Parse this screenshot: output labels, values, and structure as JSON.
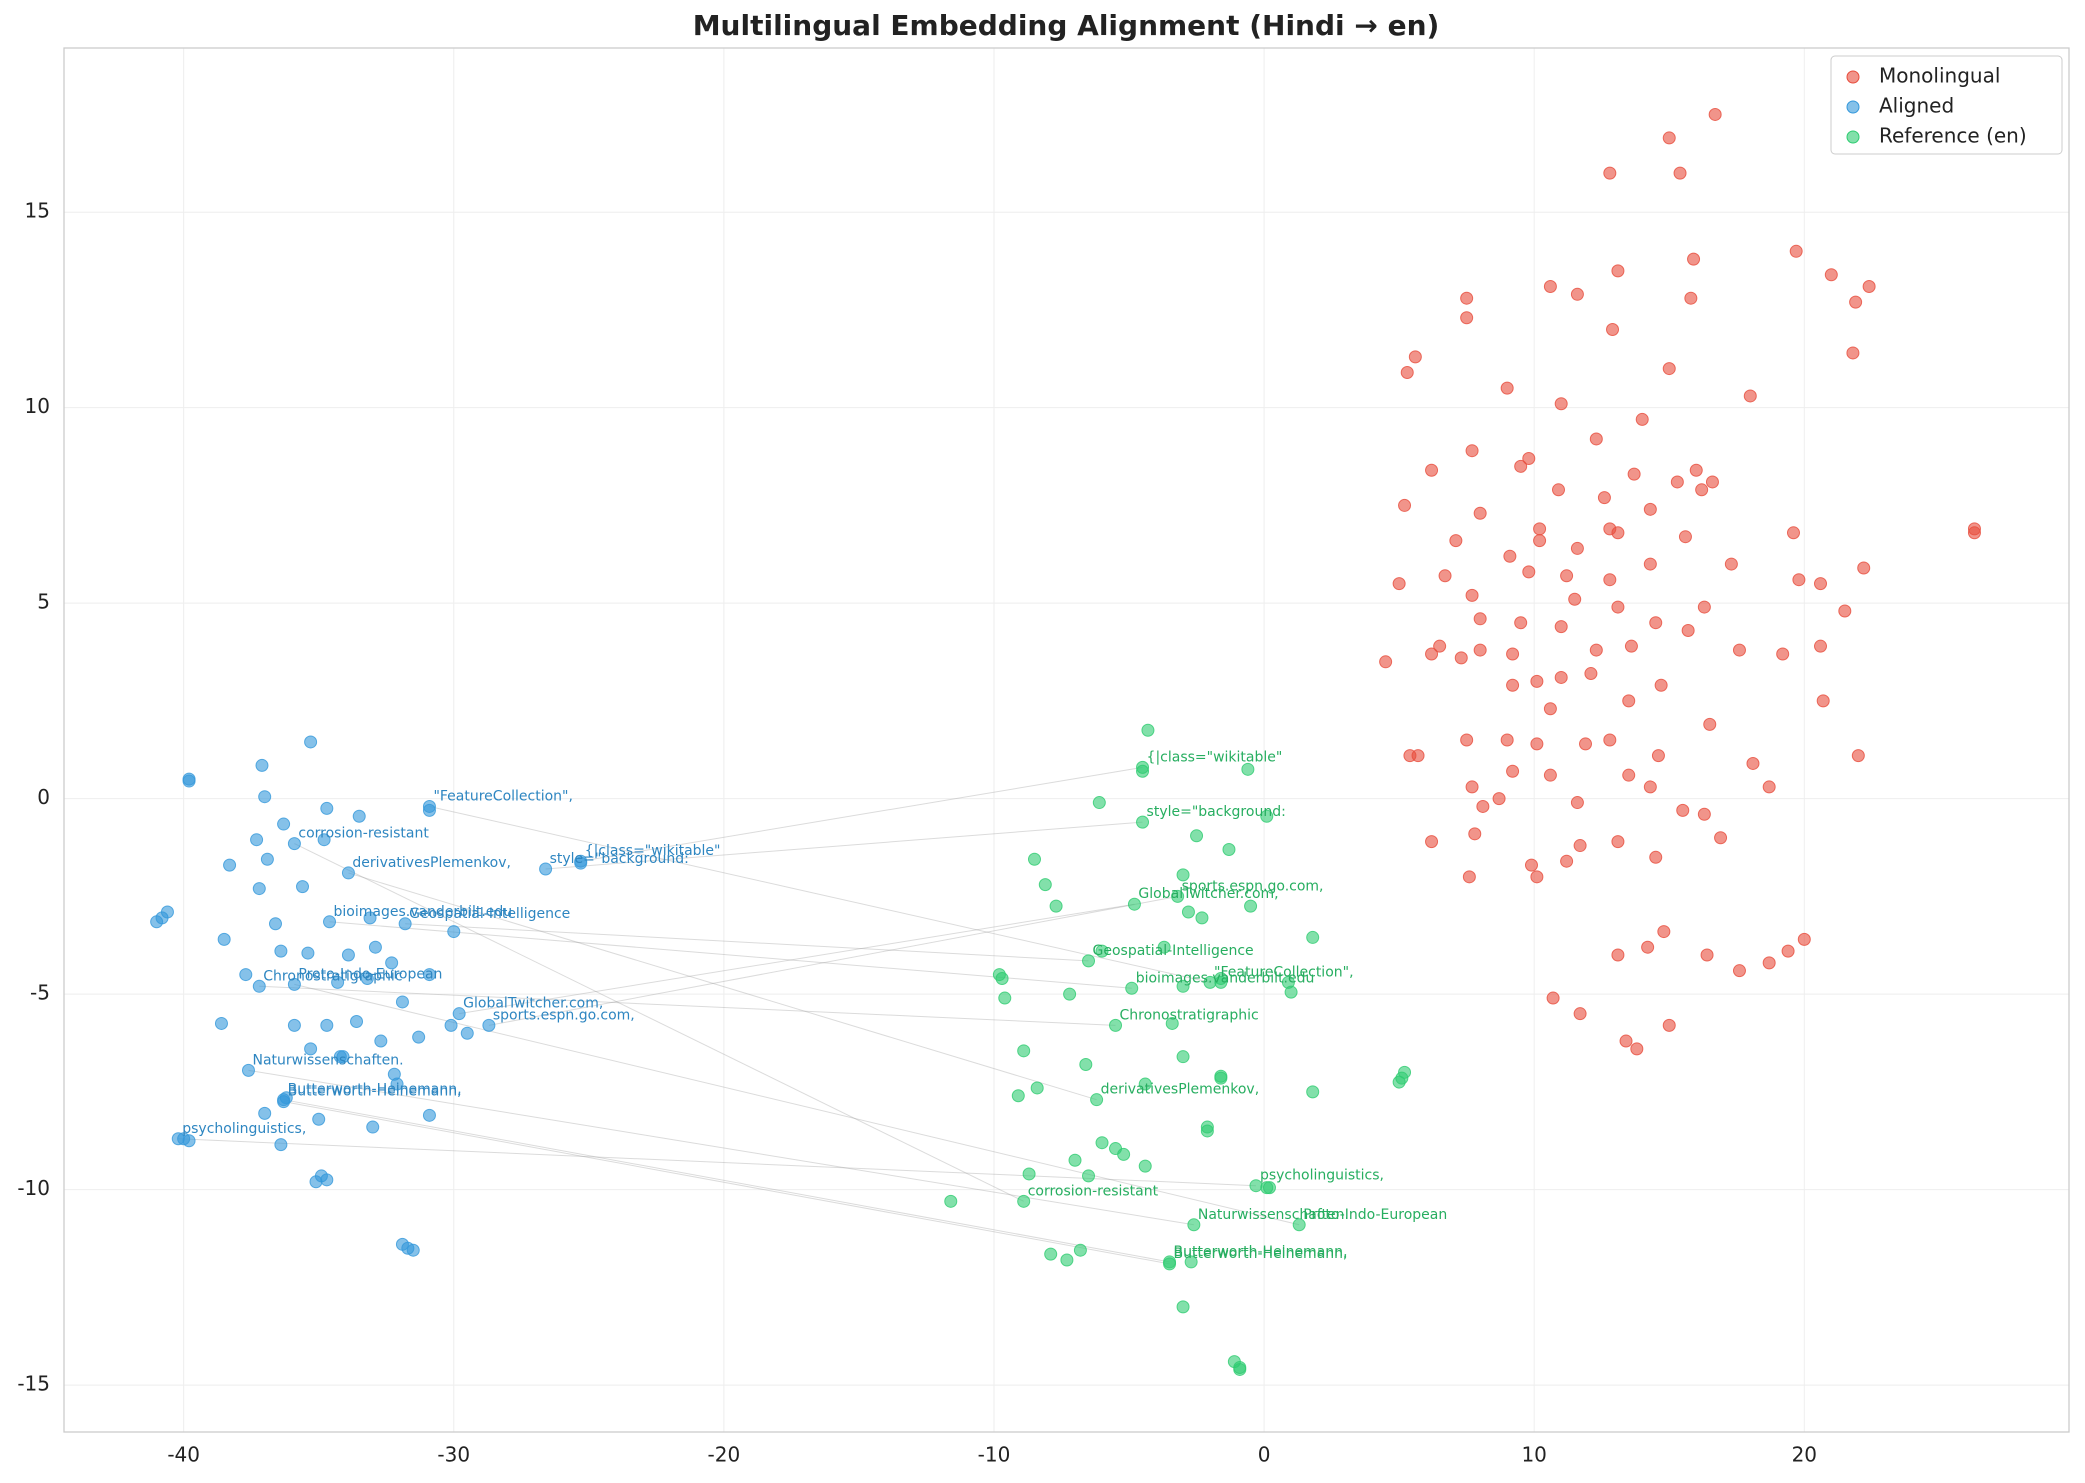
{
  "chart_data": {
    "type": "scatter",
    "title": "Multilingual Embedding Alignment (Hindi → en)",
    "xlim": [
      -44.43,
      29.8
    ],
    "ylim": [
      -16.2,
      19.2
    ],
    "xticks": [
      -40,
      -30,
      -20,
      -10,
      0,
      10,
      20
    ],
    "yticks": [
      -15,
      -10,
      -5,
      0,
      5,
      10,
      15
    ],
    "grid": true,
    "legend": "upper right",
    "series": [
      {
        "name": "Monolingual",
        "color": "#e74c3c",
        "x": [
          16.7,
          15,
          12.8,
          15.4,
          19.7,
          15.9,
          21,
          22.4,
          10.6,
          11.6,
          13.1,
          7.5,
          7.5,
          12.9,
          15.8,
          21.9,
          21.8,
          5.6,
          5.3,
          15,
          18,
          9,
          11,
          14,
          12.3,
          7.7,
          9.8,
          9.5,
          6.2,
          13.7,
          16,
          16.6,
          15.3,
          16.2,
          10.9,
          5.2,
          12.6,
          14.3,
          8,
          26.3,
          26.3,
          10.2,
          12.8,
          13.1,
          15.6,
          19.6,
          10.2,
          7.1,
          11.6,
          9.1,
          17.3,
          14.3,
          22.2,
          6.7,
          9.8,
          11.2,
          12.8,
          19.8,
          20.6,
          5,
          7.7,
          11.5,
          13.1,
          16.3,
          21.5,
          8,
          9.5,
          11,
          14.5,
          15.7,
          4.5,
          6.5,
          6.2,
          7.3,
          8,
          9.2,
          12.3,
          13.6,
          17.6,
          19.2,
          20.6,
          10.1,
          11,
          12.1,
          9.2,
          14.7,
          13.5,
          10.6,
          20.7,
          16.5,
          7.5,
          9,
          10.1,
          11.9,
          12.8,
          14.6,
          5.4,
          5.7,
          22,
          18.1,
          9.2,
          10.6,
          13.5,
          7.7,
          14.3,
          18.7,
          8.7,
          8.1,
          11.6,
          15.5,
          16.3,
          6.2,
          7.8,
          16.9,
          11.7,
          9.9,
          11.2,
          13.1,
          14.5,
          7.6,
          10.1,
          14.8,
          14.2,
          13.1,
          16.4,
          19.4,
          20,
          17.6,
          18.7,
          10.7,
          11.7,
          15,
          13.4,
          13.8
        ],
        "y": [
          17.5,
          16.9,
          16,
          16,
          14,
          13.8,
          13.4,
          13.1,
          13.1,
          12.9,
          13.5,
          12.8,
          12.3,
          12,
          12.8,
          12.7,
          11.4,
          11.3,
          10.9,
          11,
          10.3,
          10.5,
          10.1,
          9.7,
          9.2,
          8.9,
          8.7,
          8.5,
          8.4,
          8.3,
          8.4,
          8.1,
          8.1,
          7.9,
          7.9,
          7.5,
          7.7,
          7.4,
          7.3,
          6.9,
          6.8,
          6.9,
          6.9,
          6.8,
          6.7,
          6.8,
          6.6,
          6.6,
          6.4,
          6.2,
          6,
          6,
          5.9,
          5.7,
          5.8,
          5.7,
          5.6,
          5.6,
          5.5,
          5.5,
          5.2,
          5.1,
          4.9,
          4.9,
          4.8,
          4.6,
          4.5,
          4.4,
          4.5,
          4.3,
          3.5,
          3.9,
          3.7,
          3.6,
          3.8,
          3.7,
          3.8,
          3.9,
          3.8,
          3.7,
          3.9,
          3,
          3.1,
          3.2,
          2.9,
          2.9,
          2.5,
          2.3,
          2.5,
          1.9,
          1.5,
          1.5,
          1.4,
          1.4,
          1.5,
          1.1,
          1.1,
          1.1,
          1.1,
          0.9,
          0.7,
          0.6,
          0.6,
          0.3,
          0.3,
          0.3,
          0,
          -0.2,
          -0.1,
          -0.3,
          -0.4,
          -1.1,
          -0.9,
          -1,
          -1.2,
          -1.7,
          -1.6,
          -1.1,
          -1.5,
          -2,
          -2,
          -3.4,
          -3.8,
          -4,
          -4,
          -3.9,
          -3.6,
          -4.4,
          -4.2,
          -5.1,
          -5.5,
          -5.8,
          -6.2,
          -6.4
        ]
      },
      {
        "name": "Aligned",
        "color": "#3498db",
        "x": [
          -35.3,
          -37.1,
          -39.8,
          -39.8,
          -37,
          -34.7,
          -33.5,
          -36.3,
          -30.9,
          -30.9,
          -37.3,
          -35.9,
          -34.8,
          -38.3,
          -36.9,
          -33.9,
          -25.3,
          -25.3,
          -26.6,
          -37.2,
          -35.6,
          -40.6,
          -41,
          -40.8,
          -36.6,
          -34.6,
          -33.1,
          -31.8,
          -30,
          -38.5,
          -36.4,
          -35.4,
          -33.9,
          -32.9,
          -32.3,
          -37.7,
          -37.2,
          -35.9,
          -34.3,
          -33.2,
          -31.9,
          -30.9,
          -29.8,
          -30.1,
          -28.7,
          -29.5,
          -38.6,
          -35.9,
          -34.7,
          -33.6,
          -32.7,
          -31.3,
          -35.3,
          -34.2,
          -34.1,
          -37.6,
          -32.2,
          -32.1,
          -36.3,
          -36.3,
          -36.2,
          -37,
          -30.9,
          -35,
          -33,
          -40.2,
          -39.8,
          -40,
          -36.4,
          -34.9,
          -35.1,
          -34.7,
          -31.9,
          -31.7,
          -31.5
        ],
        "y": [
          1.45,
          0.85,
          0.5,
          0.45,
          0.05,
          -0.25,
          -0.45,
          -0.65,
          -0.2,
          -0.3,
          -1.05,
          -1.15,
          -1.05,
          -1.7,
          -1.55,
          -1.9,
          -1.6,
          -1.65,
          -1.8,
          -2.3,
          -2.25,
          -2.9,
          -3.15,
          -3.05,
          -3.2,
          -3.15,
          -3.05,
          -3.2,
          -3.4,
          -3.6,
          -3.9,
          -3.95,
          -4,
          -3.8,
          -4.2,
          -4.5,
          -4.8,
          -4.75,
          -4.7,
          -4.6,
          -5.2,
          -4.5,
          -5.5,
          -5.8,
          -5.8,
          -6,
          -5.75,
          -5.8,
          -5.8,
          -5.7,
          -6.2,
          -6.1,
          -6.4,
          -6.6,
          -6.6,
          -6.95,
          -7.05,
          -7.3,
          -7.7,
          -7.75,
          -7.65,
          -8.05,
          -8.1,
          -8.2,
          -8.4,
          -8.7,
          -8.75,
          -8.7,
          -8.85,
          -9.65,
          -9.8,
          -9.75,
          -11.4,
          -11.5,
          -11.55
        ]
      },
      {
        "name": "Reference (en)",
        "color": "#2ecc71",
        "x": [
          -4.3,
          -4.5,
          -4.5,
          -0.6,
          -6.1,
          0.1,
          -4.5,
          -2.5,
          -1.3,
          -8.5,
          -8.1,
          -3,
          -7.7,
          -4.8,
          -3.2,
          -2.8,
          -2.3,
          -0.5,
          1.8,
          -3.7,
          -6,
          -6.5,
          -2,
          -1.6,
          -1.6,
          0.9,
          1,
          -4.9,
          -3,
          -9.8,
          -9.7,
          -9.6,
          -7.2,
          -5.5,
          -3.4,
          -8.9,
          -6.6,
          -3,
          -1.6,
          -1.6,
          5.2,
          5.1,
          5,
          -8.4,
          -9.1,
          -6.2,
          -4.4,
          1.8,
          -2.1,
          -2.1,
          -6,
          -5.5,
          -5.2,
          -7,
          -8.7,
          -6.5,
          -4.4,
          -0.3,
          0.1,
          0.2,
          -11.6,
          -8.9,
          -2.6,
          1.3,
          -7.9,
          -7.3,
          -6.8,
          -3.5,
          -3.5,
          -2.7,
          -3,
          -1.1,
          -0.9,
          -0.9
        ],
        "y": [
          1.75,
          0.8,
          0.7,
          0.75,
          -0.1,
          -0.45,
          -0.6,
          -0.95,
          -1.3,
          -1.55,
          -2.2,
          -1.95,
          -2.75,
          -2.7,
          -2.5,
          -2.9,
          -3.05,
          -2.75,
          -3.55,
          -3.8,
          -3.9,
          -4.15,
          -4.7,
          -4.6,
          -4.7,
          -4.7,
          -4.95,
          -4.85,
          -4.8,
          -4.5,
          -4.6,
          -5.1,
          -5,
          -5.8,
          -5.75,
          -6.45,
          -6.8,
          -6.6,
          -7.1,
          -7.15,
          -7,
          -7.15,
          -7.25,
          -7.4,
          -7.6,
          -7.7,
          -7.3,
          -7.5,
          -8.4,
          -8.5,
          -8.8,
          -8.95,
          -9.1,
          -9.25,
          -9.6,
          -9.65,
          -9.4,
          -9.9,
          -9.95,
          -9.95,
          -10.3,
          -10.3,
          -10.9,
          -10.9,
          -11.65,
          -11.8,
          -11.55,
          -11.85,
          -11.9,
          -11.85,
          -13,
          -14.4,
          -14.55,
          -14.6
        ]
      }
    ],
    "pairs": [
      {
        "label": "{|class=\"wikitable\"",
        "aligned": {
          "x": -25.3,
          "y": -1.6
        },
        "reference": {
          "x": -4.5,
          "y": 0.8
        }
      },
      {
        "label": "style=\"background:",
        "aligned": {
          "x": -26.6,
          "y": -1.8
        },
        "reference": {
          "x": -4.5,
          "y": -0.6
        }
      },
      {
        "label": "\"FeatureCollection\",",
        "aligned": {
          "x": -30.9,
          "y": -0.2
        },
        "reference": {
          "x": -2,
          "y": -4.7
        }
      },
      {
        "label": "corrosion-resistant",
        "aligned": {
          "x": -35.9,
          "y": -1.15
        },
        "reference": {
          "x": -8.9,
          "y": -10.3
        }
      },
      {
        "label": "derivativesPlemenkov,",
        "aligned": {
          "x": -33.9,
          "y": -1.9
        },
        "reference": {
          "x": -6.2,
          "y": -7.7
        }
      },
      {
        "label": "bioimages.vanderbilt.edu",
        "aligned": {
          "x": -34.6,
          "y": -3.15
        },
        "reference": {
          "x": -4.9,
          "y": -4.85
        }
      },
      {
        "label": "Geospatial-Intelligence",
        "aligned": {
          "x": -31.8,
          "y": -3.2
        },
        "reference": {
          "x": -6.5,
          "y": -4.15
        }
      },
      {
        "label": "Chronostratigraphic",
        "aligned": {
          "x": -37.2,
          "y": -4.8
        },
        "reference": {
          "x": -5.5,
          "y": -5.8
        }
      },
      {
        "label": "Proto-Indo-European",
        "aligned": {
          "x": -35.9,
          "y": -4.75
        },
        "reference": {
          "x": 1.3,
          "y": -10.9
        }
      },
      {
        "label": "GlobalTwitcher.com,",
        "aligned": {
          "x": -29.8,
          "y": -5.5
        },
        "reference": {
          "x": -4.8,
          "y": -2.7
        }
      },
      {
        "label": "sports.espn.go.com,",
        "aligned": {
          "x": -28.7,
          "y": -5.8
        },
        "reference": {
          "x": -3.2,
          "y": -2.5
        }
      },
      {
        "label": "Naturwissenschaften.",
        "aligned": {
          "x": -37.6,
          "y": -6.95
        },
        "reference": {
          "x": -2.6,
          "y": -10.9
        }
      },
      {
        "label": "Butterworth-Heinemann,",
        "aligned": {
          "x": -36.3,
          "y": -7.7
        },
        "reference": {
          "x": -3.5,
          "y": -11.85
        }
      },
      {
        "label": "Butterworth-Heinemann,",
        "aligned": {
          "x": -36.3,
          "y": -7.75
        },
        "reference": {
          "x": -3.5,
          "y": -11.9
        }
      },
      {
        "label": "psycholinguistics,",
        "aligned": {
          "x": -40.2,
          "y": -8.7
        },
        "reference": {
          "x": -0.3,
          "y": -9.9
        }
      }
    ]
  }
}
